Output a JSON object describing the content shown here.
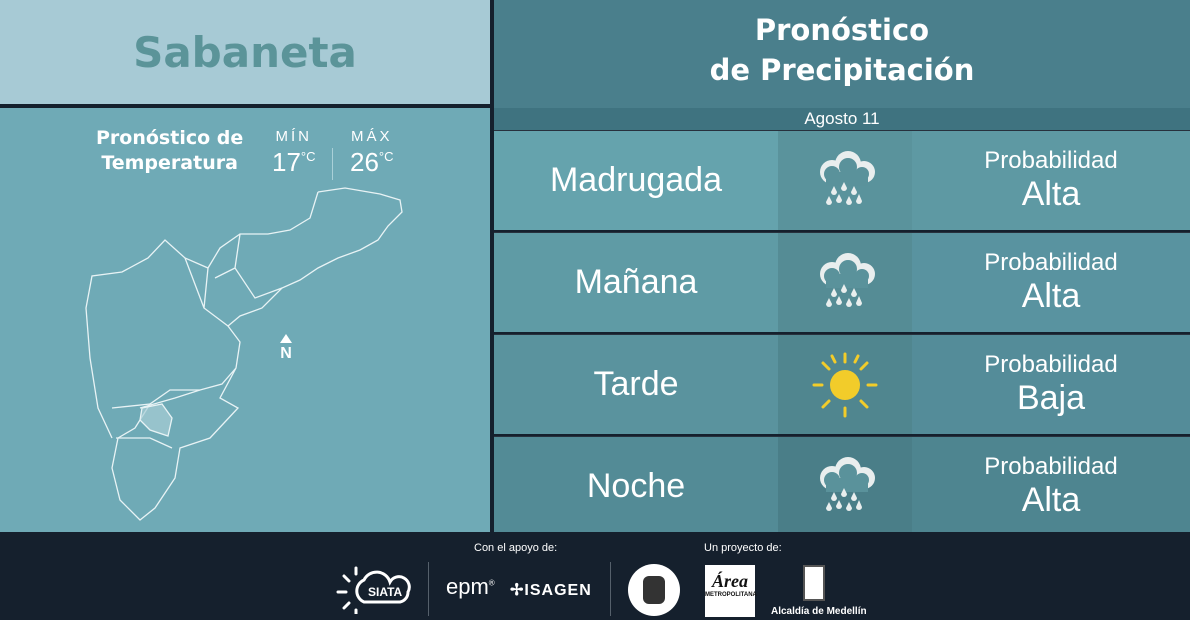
{
  "location": "Sabaneta",
  "temperature": {
    "title_line1": "Pronóstico de",
    "title_line2": "Temperatura",
    "min_label": "MÍN",
    "min_value": "17",
    "max_label": "MÁX",
    "max_value": "26",
    "unit": "°C"
  },
  "map": {
    "north_label": "N"
  },
  "precip": {
    "title_line1": "Pronóstico",
    "title_line2": "de Precipitación",
    "date": "Agosto 11",
    "rows": [
      {
        "period": "Madrugada",
        "icon": "rain-cloud-icon",
        "prob_label": "Probabilidad",
        "prob_value": "Alta"
      },
      {
        "period": "Mañana",
        "icon": "rain-cloud-icon",
        "prob_label": "Probabilidad",
        "prob_value": "Alta"
      },
      {
        "period": "Tarde",
        "icon": "sun-icon",
        "prob_label": "Probabilidad",
        "prob_value": "Baja"
      },
      {
        "period": "Noche",
        "icon": "rain-cloud-icon",
        "prob_label": "Probabilidad",
        "prob_value": "Alta"
      }
    ]
  },
  "footer": {
    "support_label": "Con el apoyo de:",
    "project_label": "Un proyecto de:",
    "logos": [
      "SIATA",
      "epm",
      "ISAGEN",
      "Área Metropolitana Valle de Aburrá",
      "Alcaldía de Medellín"
    ]
  },
  "colors": {
    "sun": "#f2cc2a",
    "footer_bg": "#15202d",
    "header_bg": "#4a7f8c"
  }
}
